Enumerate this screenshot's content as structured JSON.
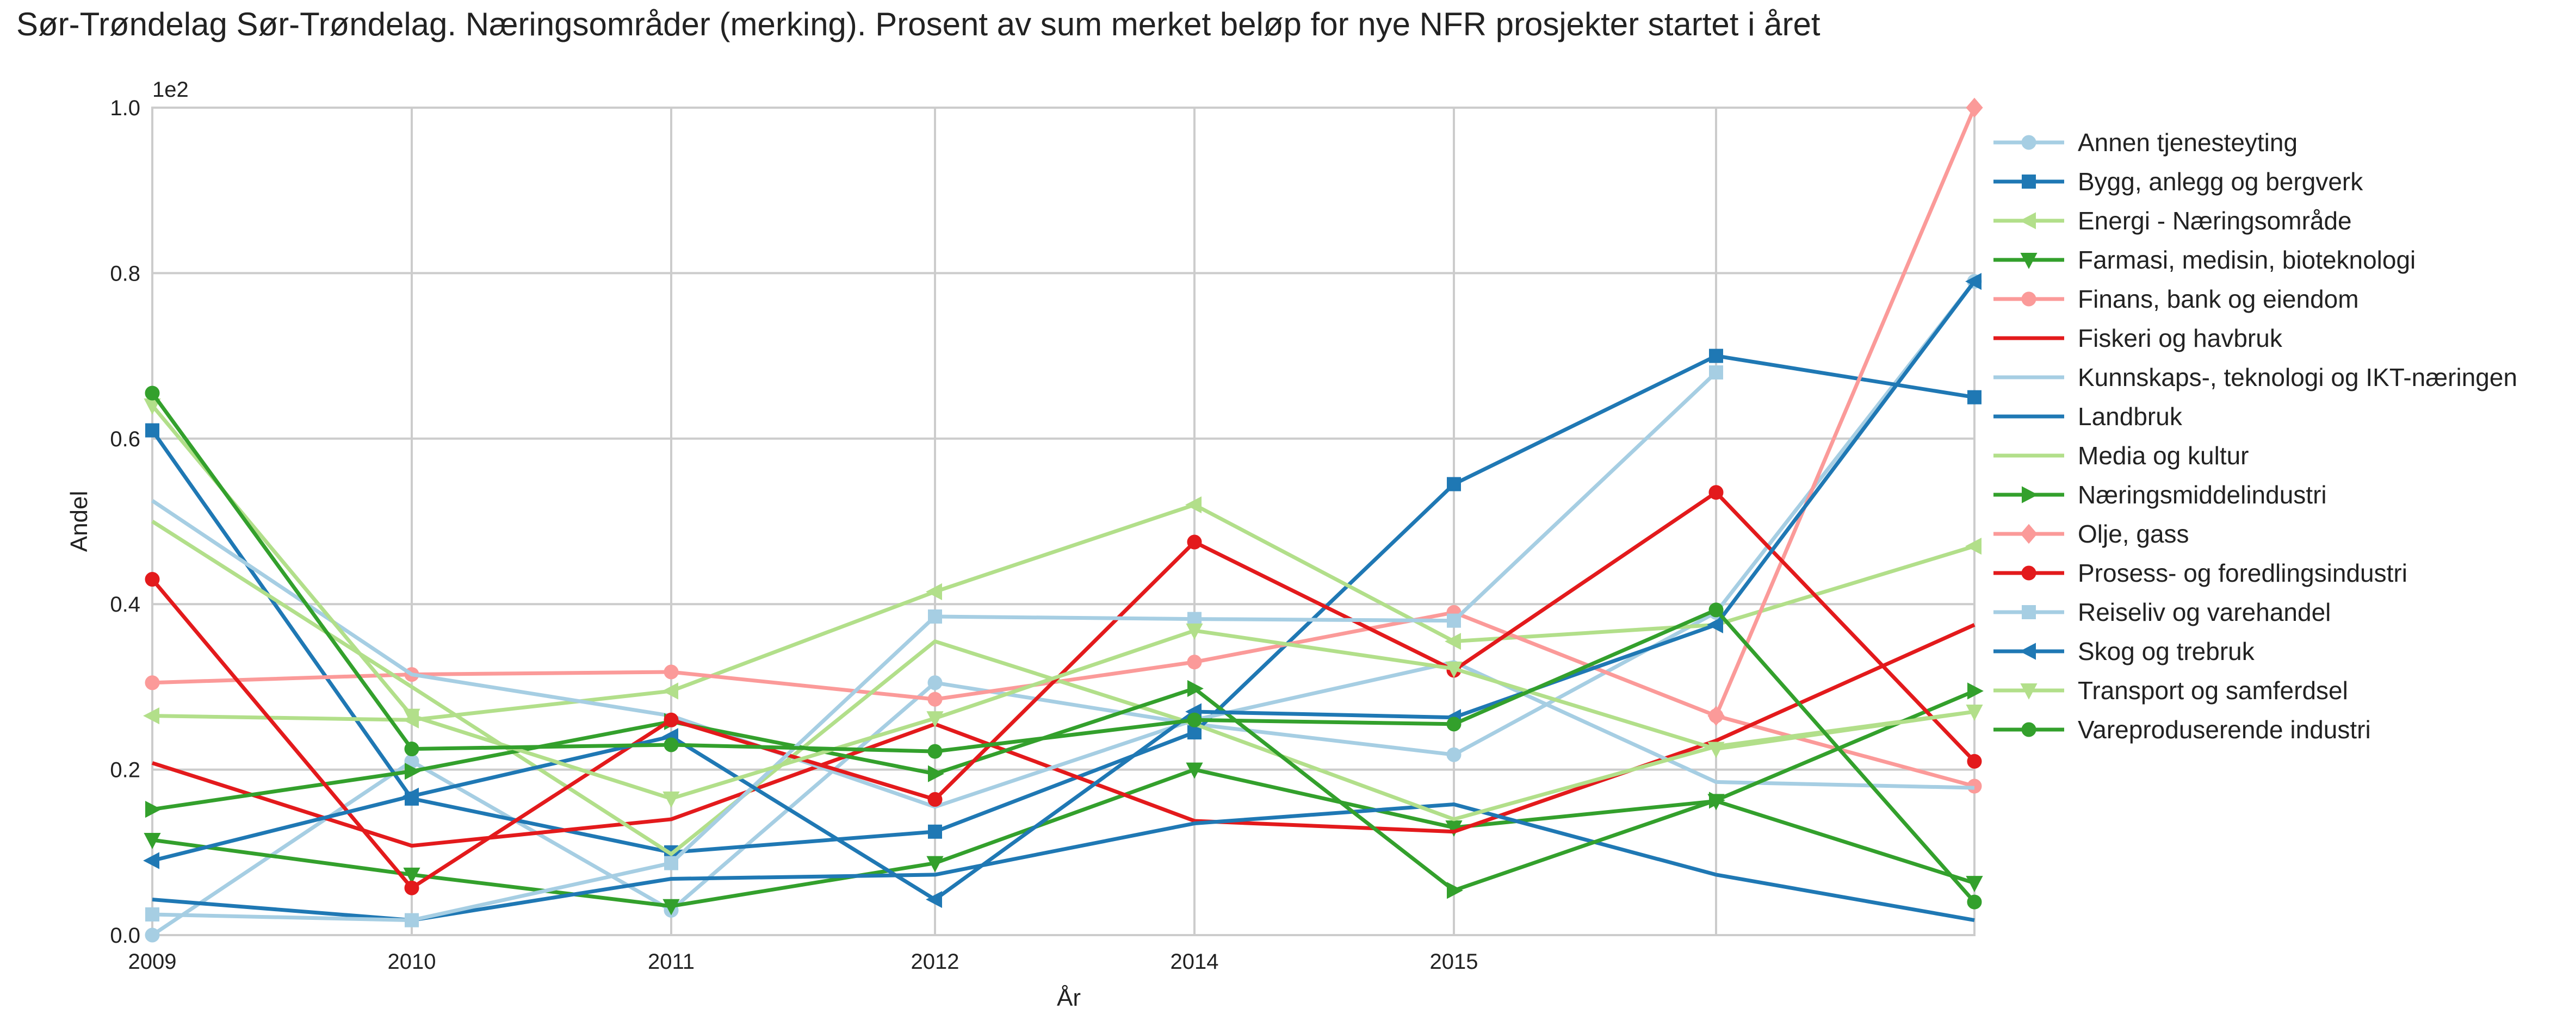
{
  "chart_data": {
    "type": "line",
    "title": "Sør-Trøndelag Sør-Trøndelag. Næringsområder (merking). Prosent av sum merket beløp for nye NFR prosjekter startet i året",
    "xlabel": "År",
    "ylabel": "Andel",
    "y_offset_text": "1e2",
    "ylim": [
      0,
      1.0
    ],
    "y_ticks": [
      "0.0",
      "0.2",
      "0.4",
      "0.6",
      "0.8",
      "1.0"
    ],
    "x_tick_labels": [
      "2009",
      "2010",
      "2011",
      "2012",
      "2014",
      "2015",
      "",
      ""
    ],
    "grid": true,
    "legend_position": "right",
    "series": [
      {
        "name": "Annen tjenesteyting",
        "color": "#a6cee3",
        "marker": "circle",
        "values": [
          0.0,
          0.21,
          0.03,
          0.305,
          0.255,
          0.218,
          0.39,
          0.79
        ]
      },
      {
        "name": "Bygg, anlegg og bergverk",
        "color": "#1f78b4",
        "marker": "square",
        "values": [
          0.61,
          0.165,
          0.1,
          0.125,
          0.245,
          0.545,
          0.7,
          0.65
        ]
      },
      {
        "name": "Energi - Næringsområde",
        "color": "#b2df8a",
        "marker": "triangle-left",
        "values": [
          0.265,
          0.26,
          0.295,
          0.415,
          0.52,
          0.355,
          0.375,
          0.47
        ]
      },
      {
        "name": "Farmasi, medisin, bioteknologi",
        "color": "#33a02c",
        "marker": "triangle-down",
        "values": [
          0.115,
          0.073,
          0.035,
          0.087,
          0.2,
          0.13,
          0.162,
          0.063
        ]
      },
      {
        "name": "Finans, bank og eiendom",
        "color": "#fb9a99",
        "marker": "circle",
        "values": [
          0.305,
          0.315,
          0.318,
          0.285,
          0.33,
          0.39,
          0.265,
          0.18
        ]
      },
      {
        "name": "Fiskeri og havbruk",
        "color": "#e31a1c",
        "marker": "none",
        "values": [
          0.208,
          0.108,
          0.14,
          0.255,
          0.138,
          0.125,
          0.235,
          0.375
        ]
      },
      {
        "name": "Kunnskaps-, teknologi og IKT-næringen",
        "color": "#a6cee3",
        "marker": "none",
        "values": [
          0.525,
          0.315,
          0.265,
          0.155,
          0.26,
          0.33,
          0.185,
          0.178
        ]
      },
      {
        "name": "Landbruk",
        "color": "#1f78b4",
        "marker": "none",
        "values": [
          0.043,
          0.018,
          0.068,
          0.073,
          0.135,
          0.158,
          0.073,
          0.018
        ]
      },
      {
        "name": "Media og kultur",
        "color": "#b2df8a",
        "marker": "none",
        "values": [
          0.5,
          0.3,
          0.098,
          0.355,
          0.255,
          0.14,
          0.228,
          0.27
        ]
      },
      {
        "name": "Næringsmiddelindustri",
        "color": "#33a02c",
        "marker": "triangle-right",
        "values": [
          0.152,
          0.198,
          0.258,
          0.195,
          0.298,
          0.054,
          0.163,
          0.295
        ]
      },
      {
        "name": "Olje, gass",
        "color": "#fb9a99",
        "marker": "diamond",
        "values": [
          null,
          null,
          null,
          null,
          null,
          null,
          0.265,
          1.0
        ]
      },
      {
        "name": "Prosess- og foredlingsindustri",
        "color": "#e31a1c",
        "marker": "circle",
        "values": [
          0.43,
          0.057,
          0.26,
          0.164,
          0.475,
          0.32,
          0.535,
          0.21
        ]
      },
      {
        "name": "Reiseliv og varehandel",
        "color": "#a6cee3",
        "marker": "square",
        "values": [
          0.025,
          0.018,
          0.087,
          0.385,
          0.382,
          0.38,
          0.68,
          null
        ]
      },
      {
        "name": "Skog og trebruk",
        "color": "#1f78b4",
        "marker": "triangle-left",
        "values": [
          0.09,
          0.168,
          0.24,
          0.043,
          0.27,
          0.263,
          0.375,
          0.79
        ]
      },
      {
        "name": "Transport og samferdsel",
        "color": "#b2df8a",
        "marker": "triangle-down",
        "values": [
          0.64,
          0.265,
          0.165,
          0.262,
          0.368,
          0.322,
          0.225,
          0.27
        ]
      },
      {
        "name": "Vareproduserende industri",
        "color": "#33a02c",
        "marker": "circle",
        "values": [
          0.655,
          0.225,
          0.23,
          0.222,
          0.26,
          0.255,
          0.393,
          0.04
        ]
      }
    ]
  }
}
